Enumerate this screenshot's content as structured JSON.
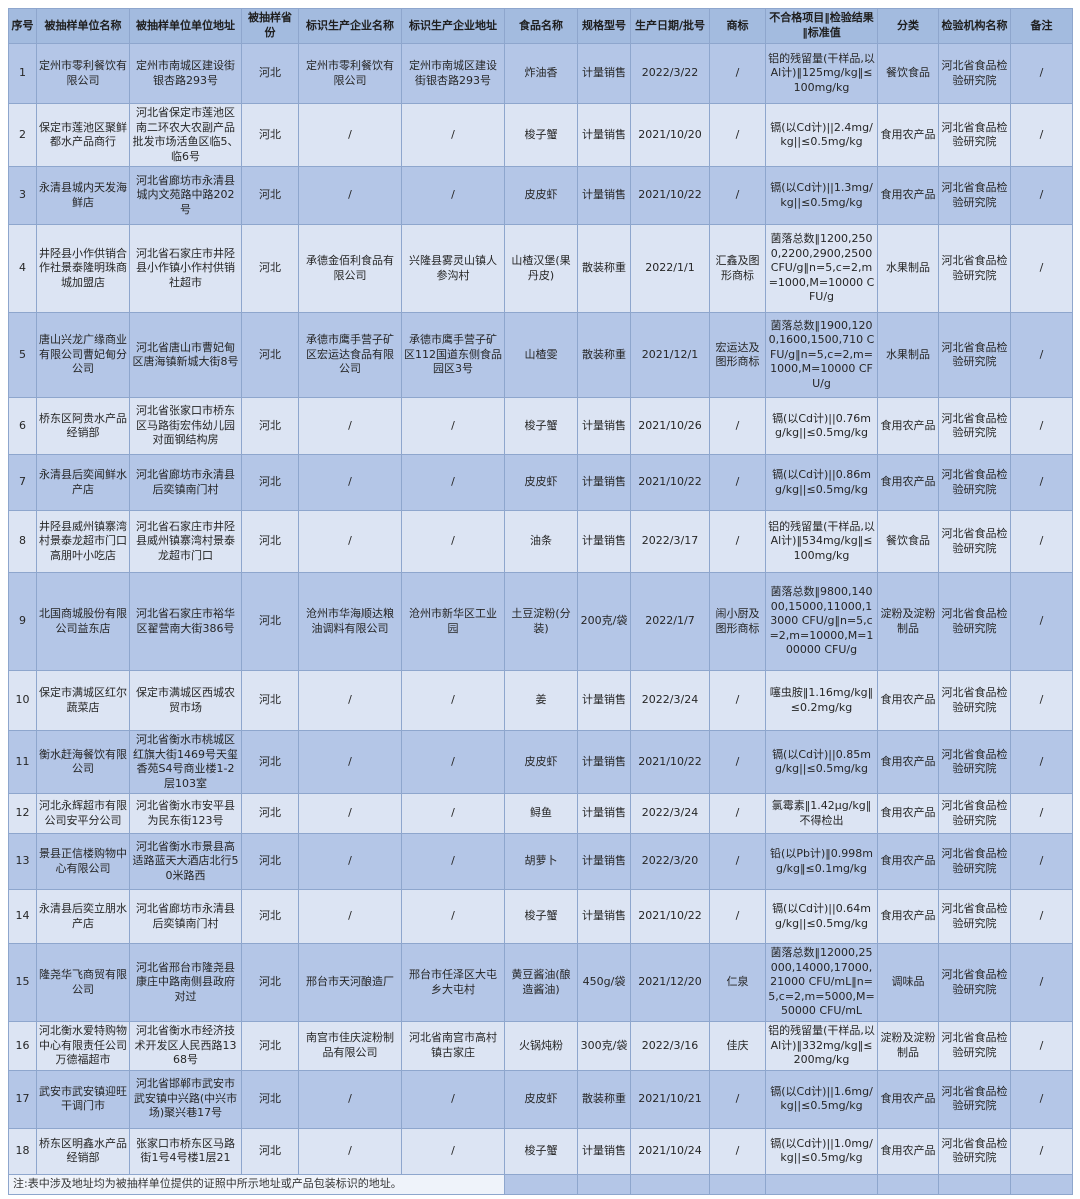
{
  "colors": {
    "header_bg": "#a3bbdf",
    "row_odd_bg": "#b4c6e7",
    "row_even_bg": "#dce4f3",
    "note_bg": "#eff3fa",
    "border": "#8ea6cd"
  },
  "table": {
    "headers": [
      "序号",
      "被抽样单位名称",
      "被抽样单位单位地址",
      "被抽样省份",
      "标识生产企业名称",
      "标识生产企业地址",
      "食品名称",
      "规格型号",
      "生产日期/批号",
      "商标",
      "不合格项目‖检验结果‖标准值",
      "分类",
      "检验机构名称",
      "备注"
    ],
    "rows": [
      [
        "1",
        "定州市零利餐饮有限公司",
        "定州市南城区建设街银杏路293号",
        "河北",
        "定州市零利餐饮有限公司",
        "定州市南城区建设街银杏路293号",
        "炸油香",
        "计量销售",
        "2022/3/22",
        "/",
        "铝的残留量(干样品,以Al计)‖125mg/kg‖≤100mg/kg",
        "餐饮食品",
        "河北省食品检验研究院",
        "/"
      ],
      [
        "2",
        "保定市莲池区聚鲜都水产品商行",
        "河北省保定市莲池区南二环农大农副产品批发市场活鱼区临5、临6号",
        "河北",
        "/",
        "/",
        "梭子蟹",
        "计量销售",
        "2021/10/20",
        "/",
        "镉(以Cd计)||2.4mg/kg||≤0.5mg/kg",
        "食用农产品",
        "河北省食品检验研究院",
        "/"
      ],
      [
        "3",
        "永清县城内天发海鲜店",
        "河北省廊坊市永清县城内文苑路中路202号",
        "河北",
        "/",
        "/",
        "皮皮虾",
        "计量销售",
        "2021/10/22",
        "/",
        "镉(以Cd计)||1.3mg/kg||≤0.5mg/kg",
        "食用农产品",
        "河北省食品检验研究院",
        "/"
      ],
      [
        "4",
        "井陉县小作供销合作社景泰隆明珠商城加盟店",
        "河北省石家庄市井陉县小作镇小作村供销社超市",
        "河北",
        "承德金佰利食品有限公司",
        "兴隆县雾灵山镇人参沟村",
        "山楂汉堡(果丹皮)",
        "散装称重",
        "2022/1/1",
        "汇鑫及图形商标",
        "菌落总数‖1200,2500,2200,2900,2500 CFU/g‖n=5,c=2,m=1000,M=10000 CFU/g",
        "水果制品",
        "河北省食品检验研究院",
        "/"
      ],
      [
        "5",
        "唐山兴龙广缘商业有限公司曹妃甸分公司",
        "河北省唐山市曹妃甸区唐海镇新城大街8号",
        "河北",
        "承德市鹰手营子矿区宏运达食品有限公司",
        "承德市鹰手营子矿区112国道东侧食品园区3号",
        "山楂雯",
        "散装称重",
        "2021/12/1",
        "宏运达及图形商标",
        "菌落总数‖1900,1200,1600,1500,710 CFU/g‖n=5,c=2,m=1000,M=10000 CFU/g",
        "水果制品",
        "河北省食品检验研究院",
        "/"
      ],
      [
        "6",
        "桥东区阿贵水产品经销部",
        "河北省张家口市桥东区马路街宏伟幼儿园对面钢结构房",
        "河北",
        "/",
        "/",
        "梭子蟹",
        "计量销售",
        "2021/10/26",
        "/",
        "镉(以Cd计)||0.76mg/kg||≤0.5mg/kg",
        "食用农产品",
        "河北省食品检验研究院",
        "/"
      ],
      [
        "7",
        "永清县后奕闻鲜水产店",
        "河北省廊坊市永清县后奕镇南门村",
        "河北",
        "/",
        "/",
        "皮皮虾",
        "计量销售",
        "2021/10/22",
        "/",
        "镉(以Cd计)||0.86mg/kg||≤0.5mg/kg",
        "食用农产品",
        "河北省食品检验研究院",
        "/"
      ],
      [
        "8",
        "井陉县威州镇寨湾村景泰龙超市门口高朋叶小吃店",
        "河北省石家庄市井陉县威州镇寨湾村景泰龙超市门口",
        "河北",
        "/",
        "/",
        "油条",
        "计量销售",
        "2022/3/17",
        "/",
        "铝的残留量(干样品,以Al计)‖534mg/kg‖≤100mg/kg",
        "餐饮食品",
        "河北省食品检验研究院",
        "/"
      ],
      [
        "9",
        "北国商城股份有限公司益东店",
        "河北省石家庄市裕华区翟营南大街386号",
        "河北",
        "沧州市华海顺达粮油调料有限公司",
        "沧州市新华区工业园",
        "土豆淀粉(分装)",
        "200克/袋",
        "2022/1/7",
        "闹小厨及图形商标",
        "菌落总数‖9800,14000,15000,11000,13000 CFU/g‖n=5,c=2,m=10000,M=100000 CFU/g",
        "淀粉及淀粉制品",
        "河北省食品检验研究院",
        "/"
      ],
      [
        "10",
        "保定市满城区红尔蔬菜店",
        "保定市满城区西城农贸市场",
        "河北",
        "/",
        "/",
        "姜",
        "计量销售",
        "2022/3/24",
        "/",
        "噻虫胺‖1.16mg/kg‖≤0.2mg/kg",
        "食用农产品",
        "河北省食品检验研究院",
        "/"
      ],
      [
        "11",
        "衡水赶海餐饮有限公司",
        "河北省衡水市桃城区红旗大街1469号天玺香苑S4号商业楼1-2层103室",
        "河北",
        "/",
        "/",
        "皮皮虾",
        "计量销售",
        "2021/10/22",
        "/",
        "镉(以Cd计)||0.85mg/kg||≤0.5mg/kg",
        "食用农产品",
        "河北省食品检验研究院",
        "/"
      ],
      [
        "12",
        "河北永辉超市有限公司安平分公司",
        "河北省衡水市安平县为民东街123号",
        "河北",
        "/",
        "/",
        "鲟鱼",
        "计量销售",
        "2022/3/24",
        "/",
        "氯霉素‖1.42μg/kg‖不得检出",
        "食用农产品",
        "河北省食品检验研究院",
        "/"
      ],
      [
        "13",
        "景县正信楼购物中心有限公司",
        "河北省衡水市景县高适路蓝天大酒店北行50米路西",
        "河北",
        "/",
        "/",
        "胡萝卜",
        "计量销售",
        "2022/3/20",
        "/",
        "铅(以Pb计)‖0.998mg/kg‖≤0.1mg/kg",
        "食用农产品",
        "河北省食品检验研究院",
        "/"
      ],
      [
        "14",
        "永清县后奕立朋水产店",
        "河北省廊坊市永清县后奕镇南门村",
        "河北",
        "/",
        "/",
        "梭子蟹",
        "计量销售",
        "2021/10/22",
        "/",
        "镉(以Cd计)||0.64mg/kg||≤0.5mg/kg",
        "食用农产品",
        "河北省食品检验研究院",
        "/"
      ],
      [
        "15",
        "隆尧华飞商贸有限公司",
        "河北省邢台市隆尧县康庄中路南侧县政府对过",
        "河北",
        "邢台市天河酿造厂",
        "邢台市任泽区大屯乡大屯村",
        "黄豆酱油(酿造酱油)",
        "450g/袋",
        "2021/12/20",
        "仁泉",
        "菌落总数‖12000,25000,14000,17000,21000 CFU/mL‖n=5,c=2,m=5000,M=50000 CFU/mL",
        "调味品",
        "河北省食品检验研究院",
        "/"
      ],
      [
        "16",
        "河北衡水爱特购物中心有限责任公司万德福超市",
        "河北省衡水市经济技术开发区人民西路1368号",
        "河北",
        "南宫市佳庆淀粉制品有限公司",
        "河北省南宫市高村镇古家庄",
        "火锅炖粉",
        "300克/袋",
        "2022/3/16",
        "佳庆",
        "铝的残留量(干样品,以Al计)‖332mg/kg‖≤200mg/kg",
        "淀粉及淀粉制品",
        "河北省食品检验研究院",
        "/"
      ],
      [
        "17",
        "武安市武安镇迎旺干调门市",
        "河北省邯郸市武安市武安镇中兴路(中兴市场)聚兴巷17号",
        "河北",
        "/",
        "/",
        "皮皮虾",
        "散装称重",
        "2021/10/21",
        "/",
        "镉(以Cd计)||1.6mg/kg||≤0.5mg/kg",
        "食用农产品",
        "河北省食品检验研究院",
        "/"
      ],
      [
        "18",
        "桥东区明鑫水产品经销部",
        "张家口市桥东区马路街1号4号楼1层21",
        "河北",
        "/",
        "/",
        "梭子蟹",
        "计量销售",
        "2021/10/24",
        "/",
        "镉(以Cd计)||1.0mg/kg||≤0.5mg/kg",
        "食用农产品",
        "河北省食品检验研究院",
        "/"
      ]
    ],
    "note": "注:表中涉及地址均为被抽样单位提供的证照中所示地址或产品包装标识的地址。"
  }
}
